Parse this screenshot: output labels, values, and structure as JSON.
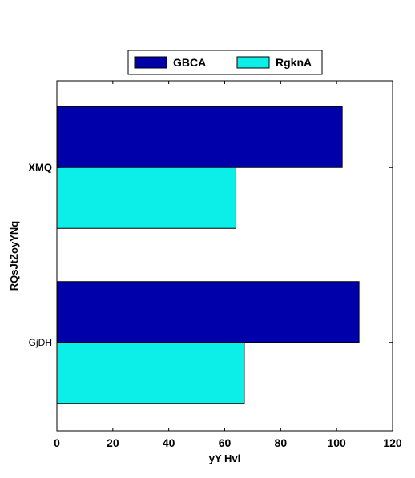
{
  "chart_data": {
    "type": "bar",
    "orientation": "horizontal",
    "categories": [
      "XMQ",
      "GjDH"
    ],
    "category_bold": [
      true,
      false
    ],
    "series": [
      {
        "name": "GBCA",
        "values": [
          102,
          108
        ],
        "color": "#0000aa"
      },
      {
        "name": "RgknA",
        "values": [
          64,
          67
        ],
        "color": "#0cefe8"
      }
    ],
    "xlabel": "yY Hvl",
    "ylabel": "RQsJtZoyYNq",
    "xlim": [
      0,
      120
    ],
    "xticks": [
      0,
      20,
      40,
      60,
      80,
      100,
      120
    ],
    "grid": false,
    "legend": {
      "position": "top-center",
      "ncol": 2
    }
  }
}
